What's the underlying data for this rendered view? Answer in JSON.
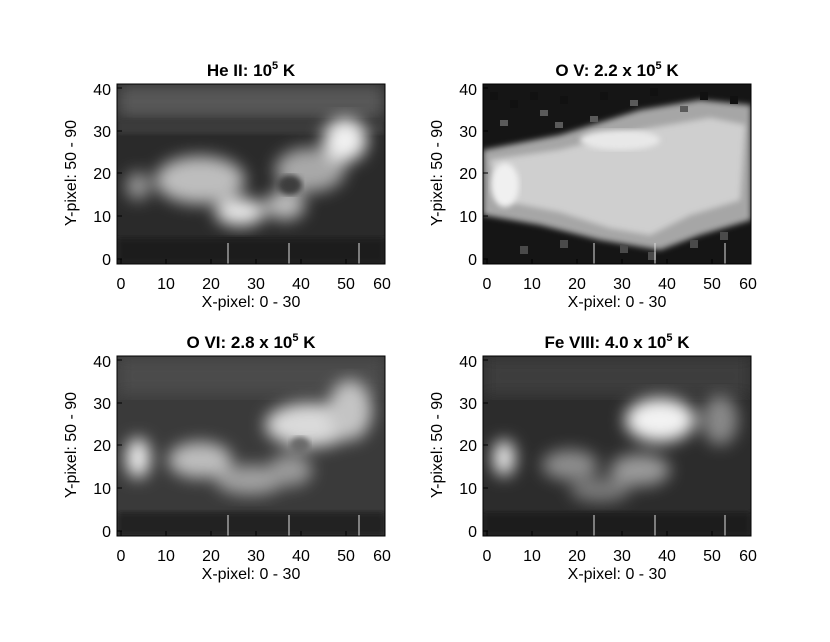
{
  "panels": [
    {
      "title_parts": {
        "pre": "He II: 10",
        "sup": "5",
        "post": " K"
      },
      "xlabel": "X-pixel: 0 - 30",
      "ylabel": "Y-pixel: 50 - 90",
      "xticks": [
        "0",
        "10",
        "20",
        "30",
        "40",
        "50",
        "60"
      ],
      "yticks": [
        "0",
        "10",
        "20",
        "30",
        "40"
      ]
    },
    {
      "title_parts": {
        "pre": "O V: 2.2 x 10",
        "sup": "5",
        "post": " K"
      },
      "xlabel": "X-pixel: 0 - 30",
      "ylabel": "Y-pixel: 50 - 90",
      "xticks": [
        "0",
        "10",
        "20",
        "30",
        "40",
        "50",
        "60"
      ],
      "yticks": [
        "0",
        "10",
        "20",
        "30",
        "40"
      ]
    },
    {
      "title_parts": {
        "pre": "O VI: 2.8 x 10",
        "sup": "5",
        "post": " K"
      },
      "xlabel": "X-pixel: 0 - 30",
      "ylabel": "Y-pixel: 50 - 90",
      "xticks": [
        "0",
        "10",
        "20",
        "30",
        "40",
        "50",
        "60"
      ],
      "yticks": [
        "0",
        "10",
        "20",
        "30",
        "40"
      ]
    },
    {
      "title_parts": {
        "pre": "Fe VIII: 4.0 x 10",
        "sup": "5",
        "post": " K"
      },
      "xlabel": "X-pixel: 0 - 30",
      "ylabel": "Y-pixel: 50 - 90",
      "xticks": [
        "0",
        "10",
        "20",
        "30",
        "40",
        "50",
        "60"
      ],
      "yticks": [
        "0",
        "10",
        "20",
        "30",
        "40"
      ]
    }
  ]
}
